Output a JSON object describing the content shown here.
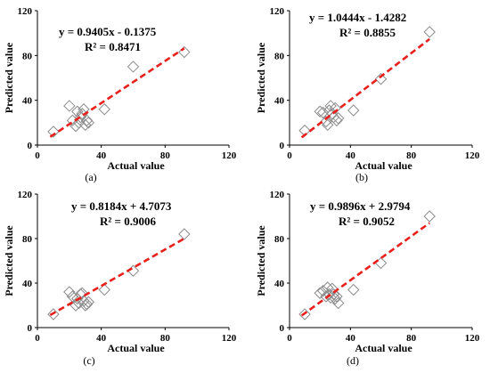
{
  "chart_data": [
    {
      "type": "scatter",
      "label": "(a)",
      "xlabel": "Actual value",
      "ylabel": "Predicted value",
      "xlim": [
        0,
        120
      ],
      "ylim": [
        0,
        120
      ],
      "xticks": [
        "0",
        "40",
        "80",
        "120"
      ],
      "yticks": [
        "0",
        "40",
        "80",
        "120"
      ],
      "equation": "y = 0.9405x - 0.1375",
      "r2": "R² = 0.8471",
      "trend": {
        "slope": 0.9405,
        "intercept": -0.1375,
        "x_range": [
          8,
          92
        ]
      },
      "points": [
        [
          10,
          12
        ],
        [
          20,
          35
        ],
        [
          22,
          22
        ],
        [
          24,
          17
        ],
        [
          25,
          30
        ],
        [
          26,
          20
        ],
        [
          27,
          25
        ],
        [
          28,
          28
        ],
        [
          29,
          32
        ],
        [
          30,
          18
        ],
        [
          31,
          22
        ],
        [
          32,
          20
        ],
        [
          42,
          32
        ],
        [
          60,
          70
        ],
        [
          92,
          83
        ]
      ]
    },
    {
      "type": "scatter",
      "label": "(b)",
      "xlabel": "Actual value",
      "ylabel": "Predicted value",
      "xlim": [
        0,
        120
      ],
      "ylim": [
        0,
        120
      ],
      "xticks": [
        "0",
        "40",
        "80",
        "120"
      ],
      "yticks": [
        "0",
        "40",
        "80",
        "120"
      ],
      "equation": "y = 1.0444x - 1.4282",
      "r2": "R² = 0.8855",
      "trend": {
        "slope": 1.0444,
        "intercept": -1.4282,
        "x_range": [
          8,
          92
        ]
      },
      "points": [
        [
          10,
          13
        ],
        [
          20,
          30
        ],
        [
          22,
          29
        ],
        [
          24,
          21
        ],
        [
          25,
          18
        ],
        [
          26,
          31
        ],
        [
          27,
          35
        ],
        [
          28,
          28
        ],
        [
          29,
          25
        ],
        [
          30,
          33
        ],
        [
          31,
          22
        ],
        [
          32,
          24
        ],
        [
          42,
          31
        ],
        [
          60,
          59
        ],
        [
          92,
          101
        ]
      ]
    },
    {
      "type": "scatter",
      "label": "(c)",
      "xlabel": "Actual value",
      "ylabel": "Predicted value",
      "xlim": [
        0,
        120
      ],
      "ylim": [
        0,
        120
      ],
      "xticks": [
        "0",
        "40",
        "80",
        "120"
      ],
      "yticks": [
        "0",
        "40",
        "80",
        "120"
      ],
      "equation": "y = 0.8184x + 4.7073",
      "r2": "R² = 0.9006",
      "trend": {
        "slope": 0.8184,
        "intercept": 4.7073,
        "x_range": [
          8,
          92
        ]
      },
      "points": [
        [
          10,
          12
        ],
        [
          20,
          32
        ],
        [
          22,
          28
        ],
        [
          24,
          20
        ],
        [
          25,
          26
        ],
        [
          26,
          22
        ],
        [
          27,
          30
        ],
        [
          28,
          31
        ],
        [
          29,
          24
        ],
        [
          30,
          20
        ],
        [
          31,
          21
        ],
        [
          32,
          23
        ],
        [
          42,
          34
        ],
        [
          60,
          51
        ],
        [
          92,
          84
        ]
      ]
    },
    {
      "type": "scatter",
      "label": "(d)",
      "xlabel": "Actual value",
      "ylabel": "Predicted value",
      "xlim": [
        0,
        120
      ],
      "ylim": [
        0,
        120
      ],
      "xticks": [
        "0",
        "40",
        "80",
        "120"
      ],
      "yticks": [
        "0",
        "40",
        "80",
        "120"
      ],
      "equation": "y = 0.9896x + 2.9794",
      "r2": "R² = 0.9052",
      "trend": {
        "slope": 0.9896,
        "intercept": 2.9794,
        "x_range": [
          8,
          92
        ]
      },
      "points": [
        [
          10,
          12
        ],
        [
          20,
          31
        ],
        [
          22,
          33
        ],
        [
          24,
          28
        ],
        [
          25,
          36
        ],
        [
          26,
          30
        ],
        [
          27,
          27
        ],
        [
          28,
          35
        ],
        [
          29,
          30
        ],
        [
          30,
          26
        ],
        [
          31,
          28
        ],
        [
          32,
          22
        ],
        [
          42,
          34
        ],
        [
          60,
          58
        ],
        [
          92,
          100
        ]
      ]
    }
  ],
  "colors": {
    "trend": "#e8201c",
    "marker_stroke": "#8c8c8c",
    "axis": "#000000"
  }
}
